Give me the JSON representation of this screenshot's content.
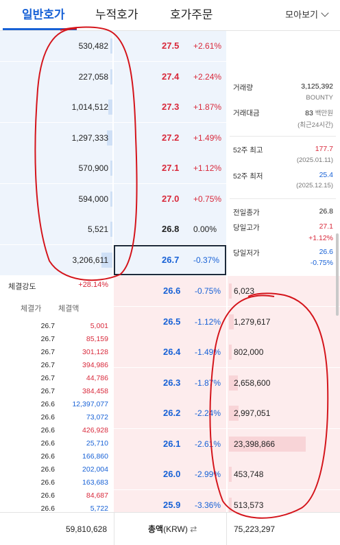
{
  "tabs": [
    "일반호가",
    "누적호가",
    "호가주문"
  ],
  "view_menu": "모아보기",
  "asks": [
    {
      "volume": "530,482",
      "price": "27.5",
      "pct": "+2.61%",
      "bar": 0.02
    },
    {
      "volume": "227,058",
      "price": "27.4",
      "pct": "+2.24%",
      "bar": 0.01
    },
    {
      "volume": "1,014,512",
      "price": "27.3",
      "pct": "+1.87%",
      "bar": 0.04
    },
    {
      "volume": "1,297,333",
      "price": "27.2",
      "pct": "+1.49%",
      "bar": 0.05
    },
    {
      "volume": "570,900",
      "price": "27.1",
      "pct": "+1.12%",
      "bar": 0.02
    },
    {
      "volume": "594,000",
      "price": "27.0",
      "pct": "+0.75%",
      "bar": 0.02
    },
    {
      "volume": "5,521",
      "price": "26.8",
      "pct": "0.00%",
      "bar": 0.0
    },
    {
      "volume": "3,206,611",
      "price": "26.7",
      "pct": "-0.37%",
      "bar": 0.1
    }
  ],
  "bids": [
    {
      "price": "26.6",
      "pct": "-0.75%",
      "volume": "6,023",
      "bar": 0.0
    },
    {
      "price": "26.5",
      "pct": "-1.12%",
      "volume": "1,279,617",
      "bar": 0.05
    },
    {
      "price": "26.4",
      "pct": "-1.49%",
      "volume": "802,000",
      "bar": 0.03
    },
    {
      "price": "26.3",
      "pct": "-1.87%",
      "volume": "2,658,600",
      "bar": 0.1
    },
    {
      "price": "26.2",
      "pct": "-2.24%",
      "volume": "2,997,051",
      "bar": 0.11
    },
    {
      "price": "26.1",
      "pct": "-2.61%",
      "volume": "23,398,866",
      "bar": 0.86
    },
    {
      "price": "26.0",
      "pct": "-2.99%",
      "volume": "453,748",
      "bar": 0.02
    },
    {
      "price": "25.9",
      "pct": "-3.36%",
      "volume": "513,573",
      "bar": 0.02
    }
  ],
  "info": {
    "volume_label": "거래량",
    "volume_value": "3,125,392",
    "volume_unit": "BOUNTY",
    "amount_label": "거래대금",
    "amount_value": "83",
    "amount_unit": "백만원",
    "amount_period": "(최근24시간)",
    "high52_label": "52주 최고",
    "high52_value": "177.7",
    "high52_date": "(2025.01.11)",
    "low52_label": "52주 최저",
    "low52_value": "25.4",
    "low52_date": "(2025.12.15)",
    "prev_close_label": "전일종가",
    "prev_close_value": "26.8",
    "day_high_label": "당일고가",
    "day_high_value": "27.1",
    "day_high_pct": "+1.12%",
    "day_low_label": "당일저가",
    "day_low_value": "26.6",
    "day_low_pct": "-0.75%"
  },
  "strength": {
    "label": "체결강도",
    "value": "+28.14%"
  },
  "trades_header": {
    "price": "체결가",
    "amount": "체결액"
  },
  "trades": [
    {
      "price": "26.7",
      "amount": "5,001",
      "side": "buy"
    },
    {
      "price": "26.7",
      "amount": "85,159",
      "side": "buy"
    },
    {
      "price": "26.7",
      "amount": "301,128",
      "side": "buy"
    },
    {
      "price": "26.7",
      "amount": "394,986",
      "side": "buy"
    },
    {
      "price": "26.7",
      "amount": "44,786",
      "side": "buy"
    },
    {
      "price": "26.7",
      "amount": "384,458",
      "side": "buy"
    },
    {
      "price": "26.6",
      "amount": "12,397,077",
      "side": "sell"
    },
    {
      "price": "26.6",
      "amount": "73,072",
      "side": "sell"
    },
    {
      "price": "26.6",
      "amount": "426,928",
      "side": "buy"
    },
    {
      "price": "26.6",
      "amount": "25,710",
      "side": "sell"
    },
    {
      "price": "26.6",
      "amount": "166,860",
      "side": "sell"
    },
    {
      "price": "26.6",
      "amount": "202,004",
      "side": "sell"
    },
    {
      "price": "26.6",
      "amount": "163,683",
      "side": "sell"
    },
    {
      "price": "26.6",
      "amount": "84,687",
      "side": "buy"
    },
    {
      "price": "26.6",
      "amount": "5,722",
      "side": "sell"
    }
  ],
  "footer": {
    "ask_total": "59,810,628",
    "label": "총액",
    "unit": "(KRW)",
    "bid_total": "75,223,297"
  },
  "colors": {
    "up": "#d8283a",
    "down": "#1761d6",
    "accent": "#1761d6",
    "annotation": "#d4141b"
  }
}
